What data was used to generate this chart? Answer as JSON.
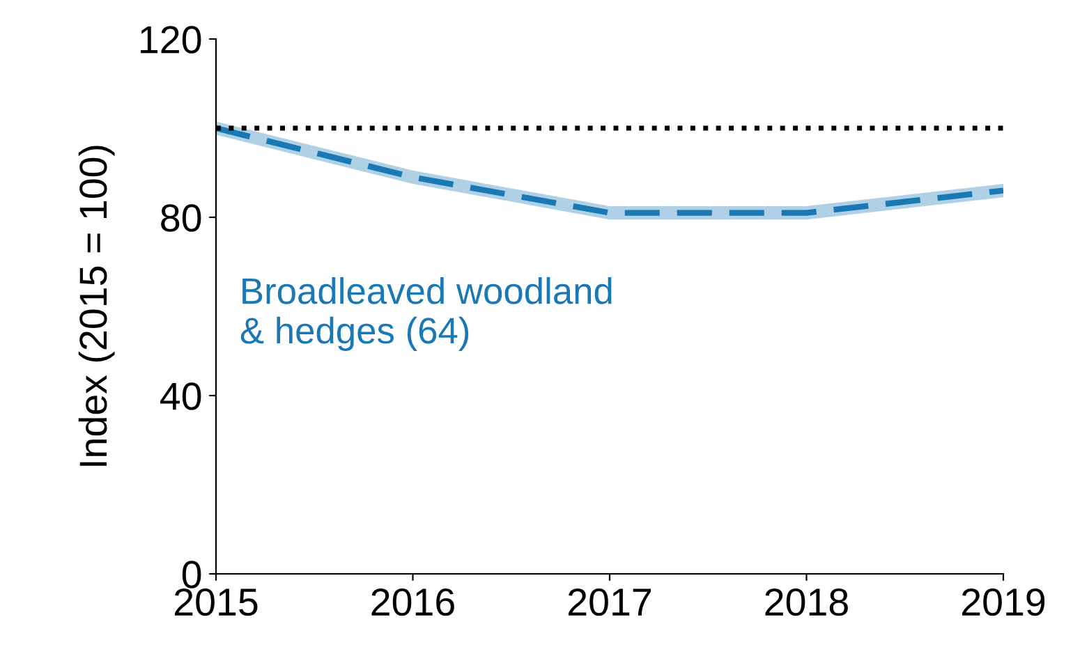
{
  "chart_data": {
    "type": "line",
    "ylabel": "Index (2015 = 100)",
    "x": [
      2015,
      2016,
      2017,
      2018,
      2019
    ],
    "series": [
      {
        "name": "Broadleaved woodland\n& hedges (64)",
        "color": "#1a78b4",
        "values": [
          100,
          89,
          81,
          81,
          86
        ],
        "lower": [
          98.5,
          87.5,
          79.5,
          79.5,
          84.5
        ],
        "upper": [
          101.5,
          90.5,
          82.5,
          82.5,
          87.5
        ]
      }
    ],
    "ref_lines": [
      {
        "axis": "y",
        "value": 100,
        "color": "#000000",
        "line_style": "dotted"
      }
    ],
    "xlim": [
      2015,
      2019
    ],
    "xticks": [
      2015,
      2016,
      2017,
      2018,
      2019
    ],
    "ylim": [
      0,
      120
    ],
    "yticks": [
      0,
      40,
      80,
      120
    ],
    "line_style": "dashed",
    "marker": "none",
    "grid": false,
    "legend": false
  }
}
